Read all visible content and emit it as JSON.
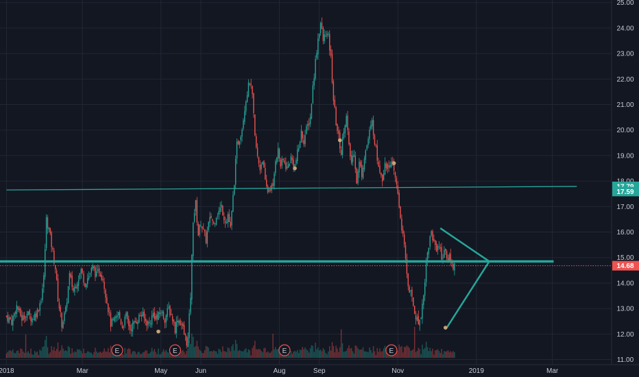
{
  "chart_data": {
    "type": "candlestick",
    "colors": {
      "background": "#131722",
      "grid": "#232735",
      "up": "#26a69a",
      "down": "#ef5350",
      "line": "#26a69a",
      "price_marker": "#ef5350",
      "dot": "#c8a27a"
    },
    "x_ticks": [
      {
        "label": "2018",
        "d": 0
      },
      {
        "label": "Mar",
        "d": 59
      },
      {
        "label": "May",
        "d": 120
      },
      {
        "label": "Jun",
        "d": 151
      },
      {
        "label": "Aug",
        "d": 212
      },
      {
        "label": "Sep",
        "d": 243
      },
      {
        "label": "Nov",
        "d": 304
      },
      {
        "label": "2019",
        "d": 365
      },
      {
        "label": "Mar",
        "d": 424
      }
    ],
    "xlim": [
      -5,
      470
    ],
    "y_ticks": [
      "11.00",
      "12.00",
      "13.00",
      "14.00",
      "15.00",
      "16.00",
      "17.00",
      "18.00",
      "19.00",
      "20.00",
      "21.00",
      "22.00",
      "23.00",
      "24.00",
      "25.00"
    ],
    "ylim": [
      10.8,
      25.1
    ],
    "price_labels": [
      {
        "value": 17.79,
        "text": "17.79",
        "color": "#26a69a"
      },
      {
        "value": 17.59,
        "text": "17.59",
        "color": "#26a69a"
      },
      {
        "value": 14.68,
        "text": "14.68",
        "color": "#ef5350"
      }
    ],
    "close_series": [
      [
        0,
        12.7
      ],
      [
        4,
        12.5
      ],
      [
        8,
        13.1
      ],
      [
        12,
        12.6
      ],
      [
        16,
        12.8
      ],
      [
        20,
        12.6
      ],
      [
        24,
        12.9
      ],
      [
        27,
        13.4
      ],
      [
        29,
        14.2
      ],
      [
        31,
        16.5
      ],
      [
        33,
        16.1
      ],
      [
        36,
        15.2
      ],
      [
        38,
        14.6
      ],
      [
        40,
        13.4
      ],
      [
        43,
        12.4
      ],
      [
        46,
        12.9
      ],
      [
        49,
        14.3
      ],
      [
        52,
        13.7
      ],
      [
        55,
        14.1
      ],
      [
        58,
        14.5
      ],
      [
        61,
        14.0
      ],
      [
        64,
        14.3
      ],
      [
        67,
        14.6
      ],
      [
        70,
        14.3
      ],
      [
        72,
        14.5
      ],
      [
        75,
        14.2
      ],
      [
        78,
        13.3
      ],
      [
        81,
        12.4
      ],
      [
        84,
        12.5
      ],
      [
        87,
        12.8
      ],
      [
        90,
        12.3
      ],
      [
        93,
        12.7
      ],
      [
        96,
        12.2
      ],
      [
        99,
        12.4
      ],
      [
        102,
        12.6
      ],
      [
        105,
        12.8
      ],
      [
        108,
        12.5
      ],
      [
        111,
        12.4
      ],
      [
        114,
        12.8
      ],
      [
        117,
        12.6
      ],
      [
        120,
        12.9
      ],
      [
        123,
        12.6
      ],
      [
        126,
        13.0
      ],
      [
        129,
        12.6
      ],
      [
        131,
        12.2
      ],
      [
        133,
        12.6
      ],
      [
        136,
        12.4
      ],
      [
        138,
        12.0
      ],
      [
        140,
        11.7
      ],
      [
        141,
        11.8
      ],
      [
        143,
        13.5
      ],
      [
        145,
        16.5
      ],
      [
        147,
        17.1
      ],
      [
        149,
        15.9
      ],
      [
        151,
        16.4
      ],
      [
        153,
        16.0
      ],
      [
        155,
        15.7
      ],
      [
        157,
        16.3
      ],
      [
        159,
        16.6
      ],
      [
        161,
        16.3
      ],
      [
        163,
        16.7
      ],
      [
        165,
        16.8
      ],
      [
        167,
        17.0
      ],
      [
        169,
        16.6
      ],
      [
        171,
        16.4
      ],
      [
        172,
        16.7
      ],
      [
        174,
        16.1
      ],
      [
        177,
        18.0
      ],
      [
        179,
        19.4
      ],
      [
        181,
        19.7
      ],
      [
        183,
        20.1
      ],
      [
        185,
        20.9
      ],
      [
        187,
        21.5
      ],
      [
        189,
        21.9
      ],
      [
        191,
        21.3
      ],
      [
        193,
        19.7
      ],
      [
        195,
        18.9
      ],
      [
        197,
        18.5
      ],
      [
        199,
        18.9
      ],
      [
        201,
        17.9
      ],
      [
        203,
        17.6
      ],
      [
        205,
        17.8
      ],
      [
        207,
        17.7
      ],
      [
        209,
        18.9
      ],
      [
        211,
        19.2
      ],
      [
        213,
        18.6
      ],
      [
        215,
        18.8
      ],
      [
        218,
        18.5
      ],
      [
        221,
        18.9
      ],
      [
        224,
        18.6
      ],
      [
        227,
        19.3
      ],
      [
        229,
        19.9
      ],
      [
        231,
        19.6
      ],
      [
        233,
        20.0
      ],
      [
        236,
        20.5
      ],
      [
        238,
        21.7
      ],
      [
        240,
        22.7
      ],
      [
        242,
        23.6
      ],
      [
        244,
        24.2
      ],
      [
        246,
        23.5
      ],
      [
        248,
        23.8
      ],
      [
        250,
        23.6
      ],
      [
        252,
        22.8
      ],
      [
        254,
        21.2
      ],
      [
        256,
        20.3
      ],
      [
        258,
        19.7
      ],
      [
        260,
        19.1
      ],
      [
        262,
        20.1
      ],
      [
        264,
        20.5
      ],
      [
        266,
        19.3
      ],
      [
        268,
        18.7
      ],
      [
        270,
        19.2
      ],
      [
        272,
        18.0
      ],
      [
        274,
        18.7
      ],
      [
        276,
        18.3
      ],
      [
        278,
        19.0
      ],
      [
        280,
        19.4
      ],
      [
        282,
        19.9
      ],
      [
        284,
        20.3
      ],
      [
        286,
        19.6
      ],
      [
        288,
        18.9
      ],
      [
        290,
        18.5
      ],
      [
        292,
        18.1
      ],
      [
        294,
        18.8
      ],
      [
        296,
        18.5
      ],
      [
        298,
        18.8
      ],
      [
        300,
        18.5
      ],
      [
        302,
        18.1
      ],
      [
        304,
        17.5
      ],
      [
        306,
        16.6
      ],
      [
        308,
        15.8
      ],
      [
        310,
        14.9
      ],
      [
        312,
        13.9
      ],
      [
        314,
        13.6
      ],
      [
        316,
        13.1
      ],
      [
        318,
        12.7
      ],
      [
        320,
        12.4
      ],
      [
        322,
        12.8
      ],
      [
        324,
        13.5
      ],
      [
        326,
        14.8
      ],
      [
        328,
        15.5
      ],
      [
        330,
        16.0
      ],
      [
        332,
        15.6
      ],
      [
        334,
        15.4
      ],
      [
        336,
        15.5
      ],
      [
        338,
        15.0
      ],
      [
        340,
        15.3
      ],
      [
        342,
        14.9
      ],
      [
        344,
        15.1
      ],
      [
        346,
        14.7
      ],
      [
        348,
        14.68
      ]
    ],
    "levels": [
      {
        "name": "upper-support",
        "from": [
          0,
          17.65
        ],
        "to": [
          443,
          17.79
        ],
        "width": 1.3
      },
      {
        "name": "breakout-level",
        "from": [
          -5,
          14.85
        ],
        "to": [
          425,
          14.85
        ],
        "width": 3.5
      }
    ],
    "triangle": [
      [
        337,
        16.15
      ],
      [
        375,
        14.85
      ],
      [
        342,
        12.25
      ]
    ],
    "dots": [
      [
        118,
        12.1
      ],
      [
        224,
        18.5
      ],
      [
        259,
        19.6
      ],
      [
        301,
        18.7
      ],
      [
        341,
        12.25
      ]
    ],
    "earnings_d": [
      86,
      131,
      216,
      299
    ],
    "earnings_label": "E"
  }
}
